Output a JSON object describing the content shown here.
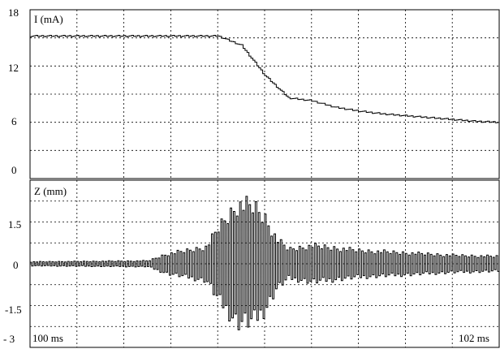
{
  "chart_data": [
    {
      "type": "line",
      "panel": "current",
      "title": "I (mA)",
      "ylabel": "I (mA)",
      "xlabel": "",
      "ylim": [
        0,
        18
      ],
      "yticks": [
        "18",
        "12",
        "6",
        "0"
      ],
      "grid": true,
      "series": [
        {
          "x": [
            0,
            0.1,
            0.2,
            0.3,
            0.4,
            0.5,
            0.6,
            0.7,
            0.8,
            0.9,
            1.0,
            1.1,
            1.2,
            1.3,
            1.4,
            1.5,
            1.6,
            1.7,
            1.8,
            1.9,
            2.0
          ],
          "y": [
            15.2,
            15.2,
            15.2,
            15.2,
            15.2,
            15.2,
            15.2,
            15.2,
            15.2,
            14.2,
            11.0,
            8.6,
            8.3,
            7.6,
            7.2,
            6.9,
            6.7,
            6.5,
            6.3,
            6.1,
            6.0
          ]
        }
      ]
    },
    {
      "type": "line",
      "panel": "position",
      "title": "Z (mm)",
      "ylabel": "Z (mm)",
      "xlabel": "",
      "ylim": [
        -3,
        3
      ],
      "yticks": [
        "1.5",
        "0",
        "-1.5",
        "- 3"
      ],
      "xtick_labels": [
        "100 ms",
        "102 ms"
      ],
      "grid": true,
      "series": [
        {
          "envelope": {
            "t": [
              0,
              0.5,
              0.58,
              0.75,
              0.8,
              0.88,
              0.95,
              1.0,
              1.05,
              1.1,
              1.2,
              1.4,
              1.6,
              1.8,
              2.0
            ],
            "amp": [
              0.08,
              0.12,
              0.4,
              0.7,
              1.5,
              2.45,
              2.4,
              1.9,
              1.0,
              0.6,
              0.75,
              0.55,
              0.45,
              0.35,
              0.3
            ]
          }
        }
      ]
    }
  ]
}
